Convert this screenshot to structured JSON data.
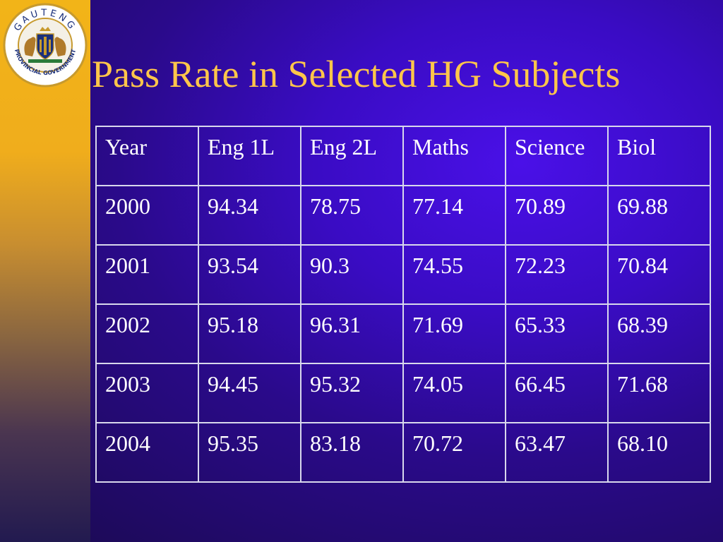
{
  "slide": {
    "title": "Pass Rate in Selected HG Subjects",
    "logo": {
      "top_text": "GAUTENG",
      "bottom_text": "PROVINCIAL GOVERNMENT",
      "colors": {
        "ring": "#c79a2e",
        "shield": "#1a2f7a",
        "lion": "#b07a2a"
      }
    },
    "colors": {
      "title": "#ffc64a",
      "background": "#3a0cc4",
      "band_top": "#f2b418",
      "band_bottom": "#221a50",
      "table_text": "#ffffff",
      "table_border": "#d8d8ec"
    }
  },
  "table": {
    "headers": [
      "Year",
      "Eng 1L",
      "Eng 2L",
      "Maths",
      "Science",
      "Biol"
    ],
    "rows": [
      [
        "2000",
        "94.34",
        "78.75",
        "77.14",
        "70.89",
        "69.88"
      ],
      [
        "2001",
        "93.54",
        "90.3",
        "74.55",
        "72.23",
        "70.84"
      ],
      [
        "2002",
        "95.18",
        "96.31",
        "71.69",
        "65.33",
        "68.39"
      ],
      [
        "2003",
        "94.45",
        "95.32",
        "74.05",
        "66.45",
        "71.68"
      ],
      [
        "2004",
        "95.35",
        "83.18",
        "70.72",
        "63.47",
        "68.10"
      ]
    ]
  }
}
